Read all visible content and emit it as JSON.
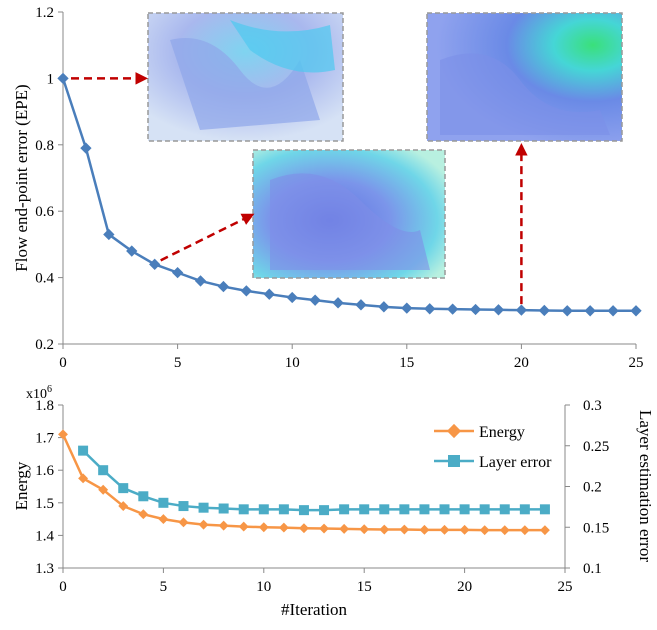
{
  "chart_data": [
    {
      "type": "line",
      "ylabel": "Flow end-point error (EPE)",
      "xlabel": "",
      "xlim": [
        0,
        25
      ],
      "ylim": [
        0.2,
        1.2
      ],
      "x_ticks": [
        "0",
        "5",
        "10",
        "15",
        "20",
        "25"
      ],
      "y_ticks": [
        "0.2",
        "0.4",
        "0.6",
        "0.8",
        "1",
        "1.2"
      ],
      "grid": false,
      "series": [
        {
          "color": "#4a7ebb",
          "marker": "diamond",
          "x": [
            0,
            1,
            2,
            3,
            4,
            5,
            6,
            7,
            8,
            9,
            10,
            11,
            12,
            13,
            14,
            15,
            16,
            17,
            18,
            19,
            20,
            21,
            22,
            23,
            24,
            25
          ],
          "y": [
            1.0,
            0.79,
            0.53,
            0.48,
            0.44,
            0.415,
            0.39,
            0.373,
            0.36,
            0.35,
            0.34,
            0.332,
            0.324,
            0.318,
            0.312,
            0.308,
            0.306,
            0.305,
            0.304,
            0.303,
            0.302,
            0.301,
            0.3,
            0.3,
            0.3,
            0.3
          ]
        }
      ],
      "annotations": [
        {
          "type": "arrow",
          "from_iteration": 0,
          "color": "#c00000",
          "style": "dashed",
          "target": "inset-flow-image-1"
        },
        {
          "type": "arrow",
          "from_iteration": 4,
          "color": "#c00000",
          "style": "dashed",
          "target": "inset-flow-image-2"
        },
        {
          "type": "arrow",
          "from_iteration": 20,
          "color": "#c00000",
          "style": "dashed",
          "target": "inset-flow-image-3"
        }
      ],
      "insets": [
        {
          "name": "flow-image-iteration-0",
          "description_color": "pale blue noisy flow field"
        },
        {
          "name": "flow-image-iteration-4",
          "description_color": "blue/cyan flow field"
        },
        {
          "name": "flow-image-iteration-20",
          "description_color": "smooth blue/cyan/green flow field"
        }
      ]
    },
    {
      "type": "line",
      "xlabel": "#Iteration",
      "ylabel": "Energy",
      "y2label": "Layer estimation error",
      "y_multiplier": "x10",
      "y_multiplier_exp": "6",
      "xlim": [
        0,
        25
      ],
      "ylim": [
        1.3,
        1.8
      ],
      "y2lim": [
        0.1,
        0.3
      ],
      "x_ticks": [
        "0",
        "5",
        "10",
        "15",
        "20",
        "25"
      ],
      "y_ticks": [
        "1.3",
        "1.4",
        "1.5",
        "1.6",
        "1.7",
        "1.8"
      ],
      "y2_ticks": [
        "0.1",
        "0.15",
        "0.2",
        "0.25",
        "0.3"
      ],
      "grid": false,
      "legend_position": "top-right",
      "series": [
        {
          "name": "Energy",
          "axis": "left",
          "color": "#f79646",
          "marker": "diamond",
          "x": [
            0,
            1,
            2,
            3,
            4,
            5,
            6,
            7,
            8,
            9,
            10,
            11,
            12,
            13,
            14,
            15,
            16,
            17,
            18,
            19,
            20,
            21,
            22,
            23,
            24
          ],
          "y": [
            1.71,
            1.575,
            1.54,
            1.49,
            1.465,
            1.45,
            1.44,
            1.433,
            1.43,
            1.427,
            1.425,
            1.424,
            1.422,
            1.421,
            1.42,
            1.419,
            1.418,
            1.418,
            1.417,
            1.417,
            1.417,
            1.416,
            1.416,
            1.416,
            1.416
          ]
        },
        {
          "name": "Layer error",
          "axis": "right",
          "color": "#4bacc6",
          "marker": "square",
          "x": [
            1,
            2,
            3,
            4,
            5,
            6,
            7,
            8,
            9,
            10,
            11,
            12,
            13,
            14,
            15,
            16,
            17,
            18,
            19,
            20,
            21,
            22,
            23,
            24
          ],
          "y": [
            0.244,
            0.22,
            0.198,
            0.188,
            0.18,
            0.176,
            0.174,
            0.173,
            0.172,
            0.172,
            0.172,
            0.171,
            0.171,
            0.172,
            0.172,
            0.172,
            0.172,
            0.172,
            0.172,
            0.172,
            0.172,
            0.172,
            0.172,
            0.172
          ]
        }
      ]
    }
  ]
}
